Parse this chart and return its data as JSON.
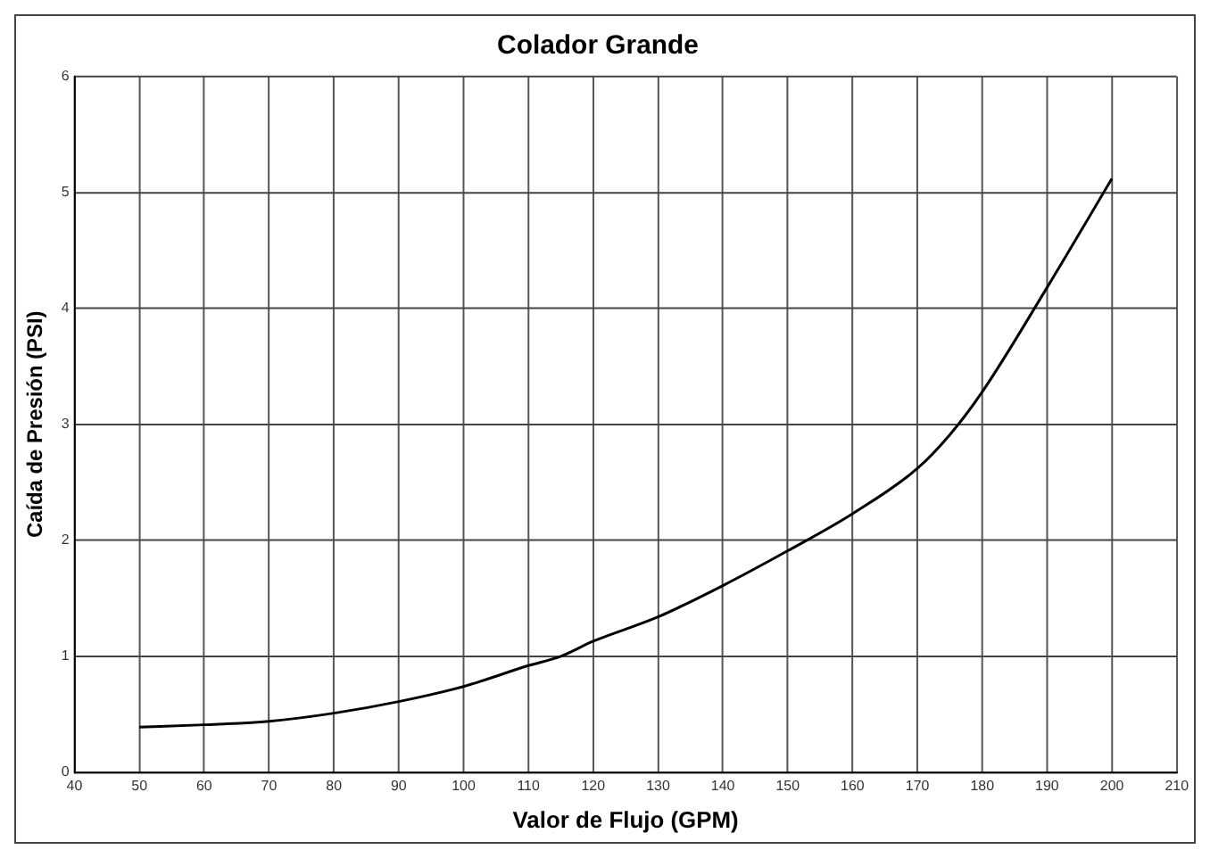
{
  "chart_data": {
    "type": "line",
    "title": "Colador Grande",
    "xlabel": "Valor de Flujo (GPM)",
    "ylabel": "Caída de Presión (PSI)",
    "x": [
      50,
      60,
      70,
      80,
      90,
      100,
      110,
      115,
      120,
      130,
      140,
      150,
      160,
      170,
      175,
      180,
      190,
      200
    ],
    "series": [
      {
        "color": "#000000",
        "values": [
          0.39,
          0.41,
          0.44,
          0.51,
          0.61,
          0.74,
          0.92,
          1.0,
          1.13,
          1.34,
          1.61,
          1.91,
          2.23,
          2.62,
          2.91,
          3.28,
          4.18,
          5.12
        ]
      }
    ],
    "xlim": [
      40,
      210
    ],
    "xticks": [
      40,
      50,
      60,
      70,
      80,
      90,
      100,
      110,
      120,
      130,
      140,
      150,
      160,
      170,
      180,
      190,
      200,
      210
    ],
    "ylim": [
      0,
      6
    ],
    "yticks": [
      0,
      1,
      2,
      3,
      4,
      5,
      6
    ],
    "grid": true,
    "legend": false,
    "marker": "none",
    "line_style": "solid"
  }
}
